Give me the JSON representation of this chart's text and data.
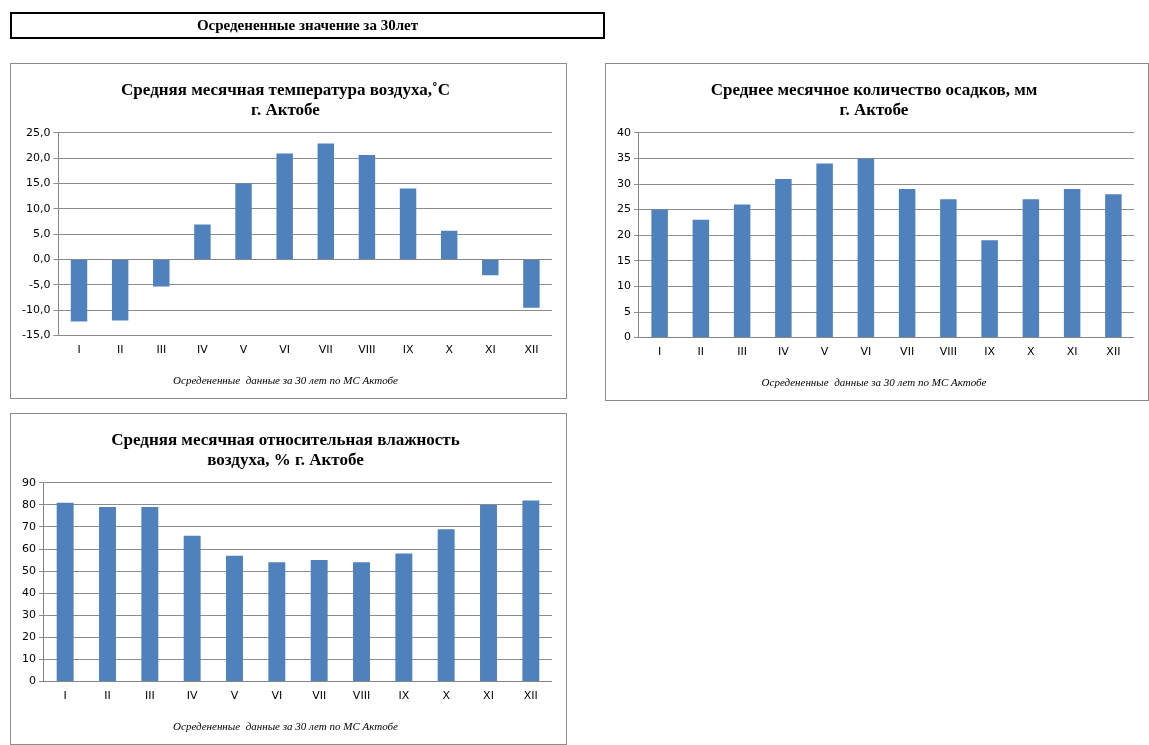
{
  "chart_data": [
    {
      "type": "other",
      "title": "Осредененные  значение за 30лет"
    },
    {
      "type": "bar",
      "title": "Средняя месячная температура воздуха,˚С\nг. Актобе",
      "categories": [
        "I",
        "II",
        "III",
        "IV",
        "V",
        "VI",
        "VII",
        "VIII",
        "IX",
        "X",
        "XI",
        "XII"
      ],
      "values": [
        -12.2,
        -12,
        -5.3,
        6.9,
        15,
        20.9,
        22.9,
        20.6,
        14,
        5.7,
        -3.1,
        -9.5
      ],
      "color": "#4f81bd",
      "ylim": [
        -15,
        25
      ],
      "yticks": [
        {
          "value": -15,
          "label": "-15,0"
        },
        {
          "value": -10,
          "label": "-10,0"
        },
        {
          "value": -5,
          "label": "-5,0"
        },
        {
          "value": 0,
          "label": "0,0"
        },
        {
          "value": 5,
          "label": "5,0"
        },
        {
          "value": 10,
          "label": "10,0"
        },
        {
          "value": 15,
          "label": "15,0"
        },
        {
          "value": 20,
          "label": "20,0"
        },
        {
          "value": 25,
          "label": "25,0"
        }
      ],
      "grid": "y",
      "annotations": [
        "Осредененные  данные за 30 лет по МС Актобе"
      ]
    },
    {
      "type": "bar",
      "title": "Среднее месячное количество осадков, мм\nг. Актобе",
      "categories": [
        "I",
        "II",
        "III",
        "IV",
        "V",
        "VI",
        "VII",
        "VIII",
        "IX",
        "X",
        "XI",
        "XII"
      ],
      "values": [
        25,
        23,
        26,
        31,
        34,
        35,
        29,
        27,
        19,
        27,
        29,
        28
      ],
      "color": "#4f81bd",
      "ylim": [
        0,
        40
      ],
      "yticks": [
        0,
        5,
        10,
        15,
        20,
        25,
        30,
        35,
        40
      ],
      "grid": "y",
      "annotations": [
        "Осредененные  данные за 30 лет по МС Актобе"
      ]
    },
    {
      "type": "bar",
      "title": "Средняя месячная относительная влажность\nвоздуха, % г. Актобе",
      "categories": [
        "I",
        "II",
        "III",
        "IV",
        "V",
        "VI",
        "VII",
        "VIII",
        "IX",
        "X",
        "XI",
        "XII"
      ],
      "values": [
        81,
        79,
        79,
        66,
        57,
        54,
        55,
        54,
        58,
        69,
        80,
        82
      ],
      "color": "#4f81bd",
      "ylim": [
        0,
        90
      ],
      "yticks": [
        0,
        10,
        20,
        30,
        40,
        50,
        60,
        70,
        80,
        90
      ],
      "grid": "y",
      "annotations": [
        "Осредененные  данные за 30 лет по МС Актобе"
      ]
    }
  ]
}
